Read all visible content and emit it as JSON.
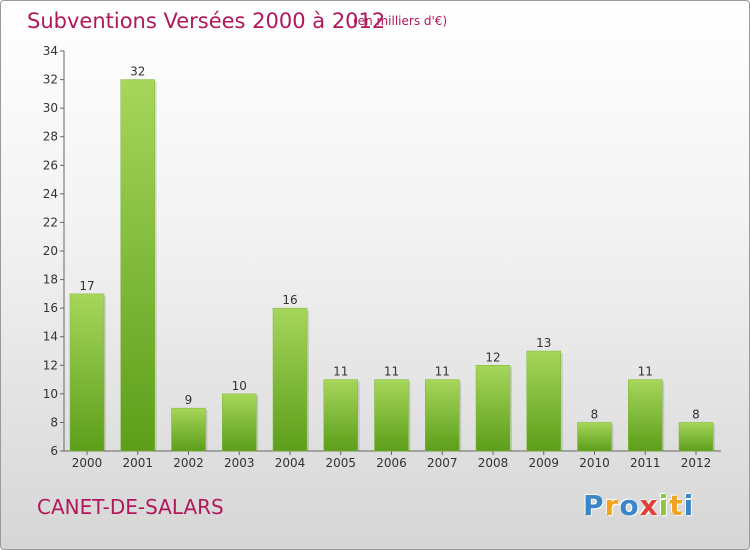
{
  "header": {
    "title": "Subventions Versées 2000 à 2012",
    "unit": "(en milliers d'€)"
  },
  "footer": {
    "commune": "CANET-DE-SALARS",
    "logo_letters": [
      "P",
      "r",
      "o",
      "x",
      "i",
      "t",
      "i"
    ],
    "logo_colors": [
      "#3a86c8",
      "#f2a41c",
      "#3a86c8",
      "#e0413b",
      "#8cc63e",
      "#f2a41c",
      "#3a86c8"
    ]
  },
  "colors": {
    "bar_top": "#a6d65a",
    "bar_bottom": "#5c9e1a",
    "text": "#b0185a"
  },
  "chart_data": {
    "type": "bar",
    "title": "Subventions Versées 2000 à 2012",
    "subtitle": "(en milliers d'€)",
    "xlabel": "",
    "ylabel": "",
    "categories": [
      "2000",
      "2001",
      "2002",
      "2003",
      "2004",
      "2005",
      "2006",
      "2007",
      "2008",
      "2009",
      "2010",
      "2011",
      "2012"
    ],
    "values": [
      17,
      32,
      9,
      10,
      16,
      11,
      11,
      11,
      12,
      13,
      8,
      11,
      8
    ],
    "ylim": [
      6,
      34
    ],
    "yticks": [
      6,
      8,
      10,
      12,
      14,
      16,
      18,
      20,
      22,
      24,
      26,
      28,
      30,
      32,
      34
    ],
    "grid": false,
    "data_labels": true
  }
}
